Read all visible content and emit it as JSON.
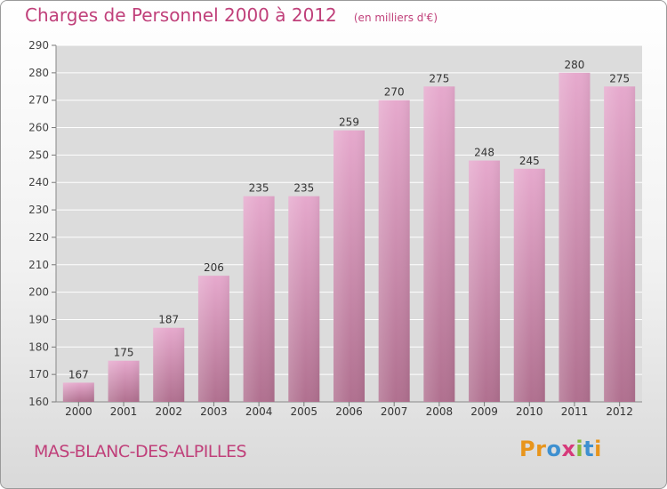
{
  "chart_data": {
    "type": "bar",
    "title": "Charges de Personnel 2000 à 2012",
    "subtitle": "(en milliers d'€)",
    "categories": [
      "2000",
      "2001",
      "2002",
      "2003",
      "2004",
      "2005",
      "2006",
      "2007",
      "2008",
      "2009",
      "2010",
      "2011",
      "2012"
    ],
    "values": [
      167,
      175,
      187,
      206,
      235,
      235,
      259,
      270,
      275,
      248,
      245,
      280,
      275
    ],
    "ylim": [
      160,
      290
    ],
    "yticks": [
      160,
      170,
      180,
      190,
      200,
      210,
      220,
      230,
      240,
      250,
      260,
      270,
      280,
      290
    ],
    "grid": true,
    "bar_color_top": "#e6a9cd",
    "bar_color_bottom": "#b0708f"
  },
  "place": "MAS-BLANC-DES-ALPILLES",
  "logo": {
    "text": "Proxiti",
    "letters": [
      {
        "char": "P",
        "color": "#e8951c"
      },
      {
        "char": "r",
        "color": "#e8951c"
      },
      {
        "char": "o",
        "color": "#3e90d0"
      },
      {
        "char": "x",
        "color": "#d63a7a"
      },
      {
        "char": "i",
        "color": "#86b93d"
      },
      {
        "char": "t",
        "color": "#3e90d0"
      },
      {
        "char": "i",
        "color": "#e8951c"
      }
    ]
  },
  "accent_color": "#c0407a"
}
